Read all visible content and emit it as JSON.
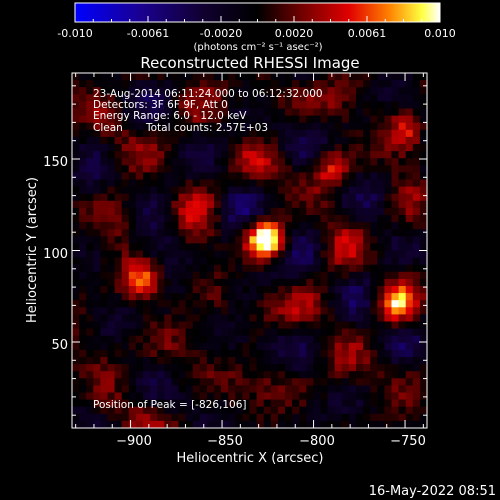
{
  "colorbar": {
    "ticks": [
      "-0.010",
      "-0.0061",
      "-0.0020",
      "0.0020",
      "0.0061",
      "0.010"
    ],
    "unit_label": "(photons cm⁻² s⁻¹ asec⁻²)"
  },
  "title": "Reconstructed RHESSI Image",
  "info": {
    "line1": "23-Aug-2014 06:11:24.000 to 06:12:32.000",
    "line2": "Detectors: 3F 6F 9F, Att 0",
    "line3": "Energy Range: 6.0 - 12.0 keV",
    "line4_a": "Clean",
    "line4_b": "Total counts: 2.57E+03",
    "peak": "Position of Peak = [-826,106]"
  },
  "footer_date": "16-May-2022 08:51",
  "colors": {
    "background": "#000000",
    "foreground": "#ffffff",
    "cmap_low": "#0000ff",
    "cmap_mid": "#000000",
    "cmap_high": "#ffffff"
  },
  "chart_data": {
    "type": "heatmap",
    "title": "Reconstructed RHESSI Image",
    "xlabel": "Heliocentric X (arcsec)",
    "ylabel": "Heliocentric Y (arcsec)",
    "xlim": [
      -932,
      -738
    ],
    "ylim": [
      3,
      197
    ],
    "x_ticks": [
      -900,
      -850,
      -800,
      -750
    ],
    "y_ticks": [
      50,
      100,
      150
    ],
    "x_tick_labels": [
      "−900",
      "−850",
      "−800",
      "−750"
    ],
    "y_tick_labels": [
      "50",
      "100",
      "150"
    ],
    "colorbar_range": [
      -0.01,
      0.01
    ],
    "peak": [
      -826,
      106
    ],
    "sources": [
      {
        "x": -826,
        "y": 106,
        "strength": 1.0
      },
      {
        "x": -893,
        "y": 83,
        "strength": 0.55
      },
      {
        "x": -755,
        "y": 70,
        "strength": 0.55
      },
      {
        "x": -748,
        "y": 165,
        "strength": 0.45
      },
      {
        "x": -790,
        "y": 145,
        "strength": 0.4
      }
    ],
    "grid": false,
    "colormap": "blue-black-red-yellow-white"
  }
}
